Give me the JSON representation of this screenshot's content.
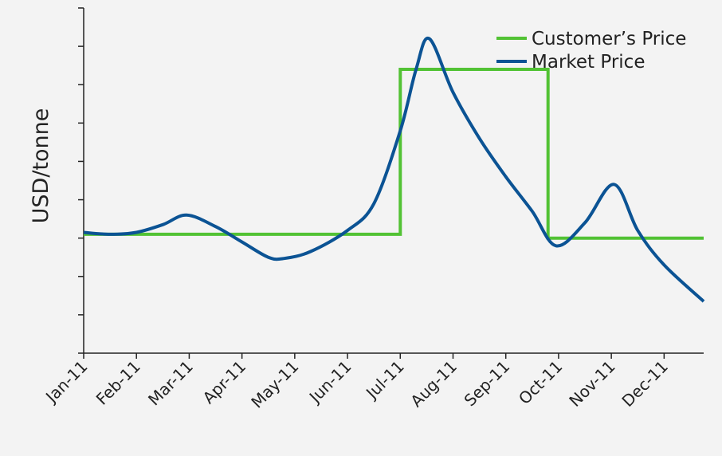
{
  "chart_data": {
    "type": "line",
    "title": "",
    "xlabel": "",
    "ylabel": "USD/tonne",
    "x_categories": [
      "Jan-11",
      "Feb-11",
      "Mar-11",
      "Apr-11",
      "May-11",
      "Jun-11",
      "Jul-11",
      "Aug-11",
      "Sep-11",
      "Oct-11",
      "Nov-11",
      "Dec-11"
    ],
    "x_range": [
      0,
      11.75
    ],
    "ylim": [
      0,
      9
    ],
    "y_ticks": [
      0,
      1,
      2,
      3,
      4,
      5,
      6,
      7,
      8,
      9
    ],
    "y_tick_labels_shown": false,
    "grid": false,
    "legend": {
      "position": "top-right"
    },
    "series": [
      {
        "name": "Customer’s Price",
        "color": "#52c234",
        "step": true,
        "points": [
          [
            0,
            3.1
          ],
          [
            6,
            3.1
          ],
          [
            6,
            7.4
          ],
          [
            8.8,
            7.4
          ],
          [
            8.8,
            3.0
          ],
          [
            11.75,
            3.0
          ]
        ]
      },
      {
        "name": "Market Price",
        "color": "#0b5394",
        "step": false,
        "points": [
          [
            0,
            3.15
          ],
          [
            0.5,
            3.1
          ],
          [
            1,
            3.15
          ],
          [
            1.5,
            3.35
          ],
          [
            1.95,
            3.6
          ],
          [
            2.5,
            3.3
          ],
          [
            3,
            2.9
          ],
          [
            3.5,
            2.5
          ],
          [
            3.8,
            2.47
          ],
          [
            4.3,
            2.65
          ],
          [
            5,
            3.2
          ],
          [
            5.5,
            3.9
          ],
          [
            6,
            5.8
          ],
          [
            6.3,
            7.4
          ],
          [
            6.55,
            8.2
          ],
          [
            7,
            6.8
          ],
          [
            7.5,
            5.6
          ],
          [
            8,
            4.6
          ],
          [
            8.5,
            3.7
          ],
          [
            8.95,
            2.8
          ],
          [
            9.5,
            3.4
          ],
          [
            10.05,
            4.4
          ],
          [
            10.5,
            3.2
          ],
          [
            11,
            2.3
          ],
          [
            11.75,
            1.35
          ]
        ]
      }
    ]
  }
}
